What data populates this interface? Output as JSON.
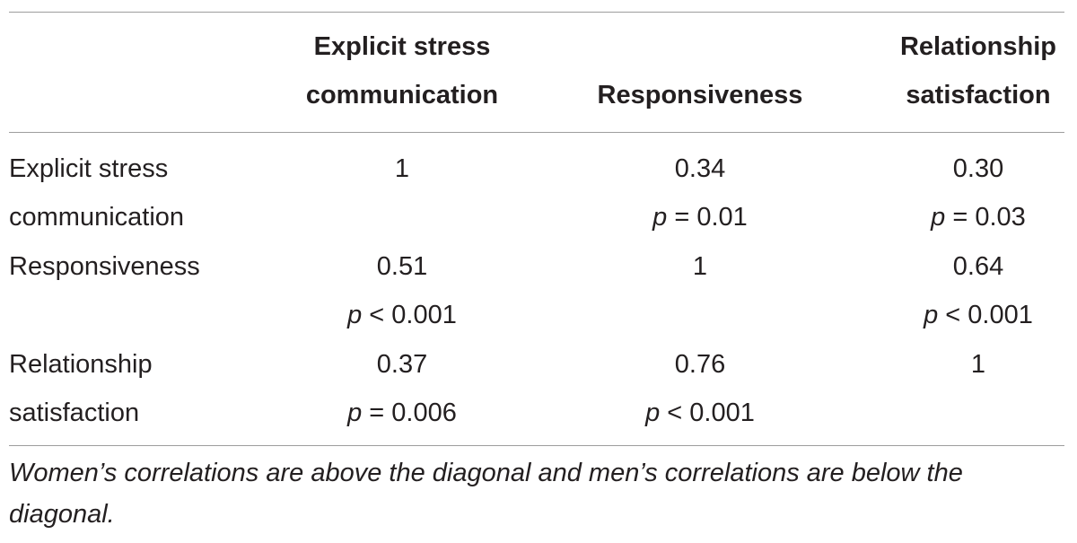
{
  "table": {
    "column_headers": [
      "",
      "Explicit stress communication",
      "Responsiveness",
      "Relationship satisfaction"
    ],
    "header_lines": {
      "col1": [
        "Explicit stress",
        "communication"
      ],
      "col2": [
        "Responsiveness"
      ],
      "col3": [
        "Relationship",
        "satisfaction"
      ]
    },
    "rows": [
      {
        "label_lines": [
          "Explicit stress",
          "communication"
        ],
        "cells": [
          {
            "r": "1",
            "p_symbol": "",
            "p_rest": ""
          },
          {
            "r": "0.34",
            "p_symbol": "p",
            "p_rest": " = 0.01"
          },
          {
            "r": "0.30",
            "p_symbol": "p",
            "p_rest": " = 0.03"
          }
        ]
      },
      {
        "label_lines": [
          "Responsiveness",
          ""
        ],
        "cells": [
          {
            "r": "0.51",
            "p_symbol": "p",
            "p_rest": " < 0.001"
          },
          {
            "r": "1",
            "p_symbol": "",
            "p_rest": ""
          },
          {
            "r": "0.64",
            "p_symbol": "p",
            "p_rest": " < 0.001"
          }
        ]
      },
      {
        "label_lines": [
          "Relationship",
          "satisfaction"
        ],
        "cells": [
          {
            "r": "0.37",
            "p_symbol": "p",
            "p_rest": " = 0.006"
          },
          {
            "r": "0.76",
            "p_symbol": "p",
            "p_rest": " < 0.001"
          },
          {
            "r": "1",
            "p_symbol": "",
            "p_rest": ""
          }
        ]
      }
    ],
    "footnote": "Women’s correlations are above the diagonal and men’s correlations are below the diagonal."
  }
}
